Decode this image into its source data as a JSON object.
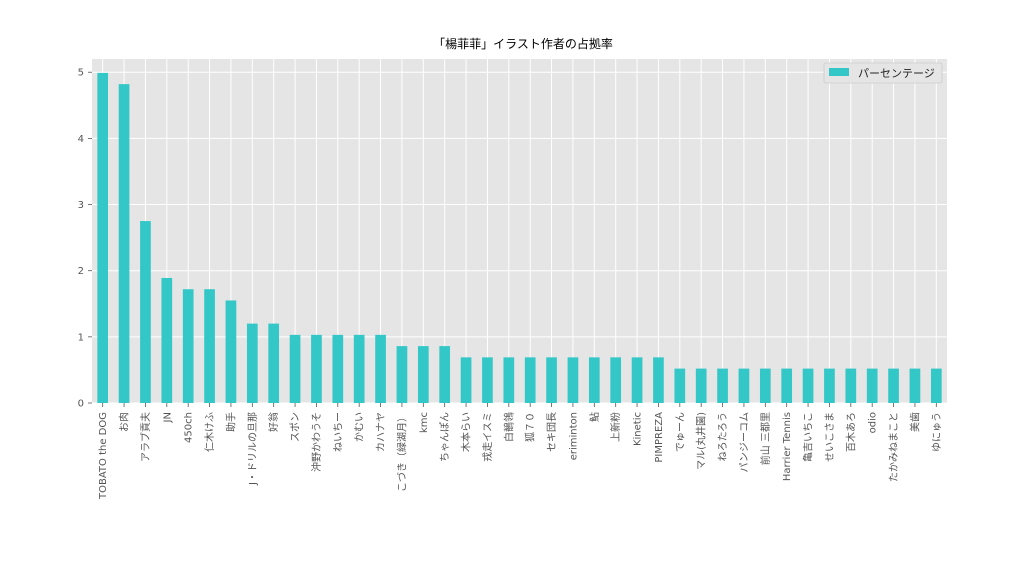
{
  "chart_data": {
    "type": "bar",
    "title": "「楊菲菲」イラスト作者の占拠率",
    "xlabel": "",
    "ylabel": "",
    "ylim": [
      0,
      5.2
    ],
    "yticks": [
      0,
      1,
      2,
      3,
      4,
      5
    ],
    "grid": true,
    "legend_position": "top-right",
    "colors": {
      "bar": "#33c7c7",
      "plot_background": "#e5e5e5",
      "grid": "#ffffff"
    },
    "categories": [
      "TOBATO the DOG",
      "お肉",
      "アラブ貢夫",
      "JN",
      "450ch",
      "仁木けふ",
      "助手",
      "J・ドリルの旦那",
      "好翁",
      "スポン",
      "沖野かわうそ",
      "ねいちー",
      "かむい",
      "カハナヤ",
      "こづき（緑湖月）",
      "kmc",
      "ちゃんぽん",
      "木本らい",
      "戎走イスミ",
      "白鶺鴒",
      "狐７０",
      "セキ団長",
      "eriminton",
      "鮎",
      "上新粉",
      "Kinetic",
      "PIMPREZA",
      "でゅーん",
      "マル(丸井園)",
      "ねろたろう",
      "パンジーコム",
      "前山 三都里",
      "Harrier Tennis",
      "亀吉いちこ",
      "せいこさま",
      "百木あろ",
      "odio",
      "たかみねまこと",
      "美歯",
      "ゆにゅう"
    ],
    "series": [
      {
        "name": "パーセンテージ",
        "values": [
          4.99,
          4.82,
          2.75,
          1.89,
          1.72,
          1.72,
          1.55,
          1.2,
          1.2,
          1.03,
          1.03,
          1.03,
          1.03,
          1.03,
          0.86,
          0.86,
          0.86,
          0.69,
          0.69,
          0.69,
          0.69,
          0.69,
          0.69,
          0.69,
          0.69,
          0.69,
          0.69,
          0.52,
          0.52,
          0.52,
          0.52,
          0.52,
          0.52,
          0.52,
          0.52,
          0.52,
          0.52,
          0.52,
          0.52,
          0.52
        ]
      }
    ]
  }
}
